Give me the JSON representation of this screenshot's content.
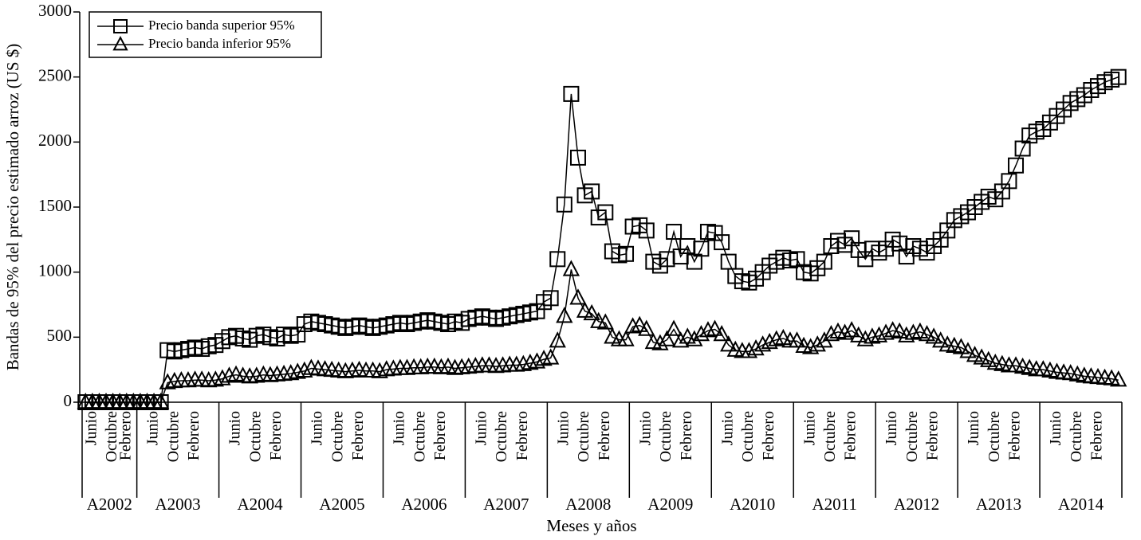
{
  "chart_data": {
    "type": "line",
    "x_label": "Meses y años",
    "y_label": "Bandas de 95% del precio estimado arroz (US $)",
    "ylim": [
      0,
      3000
    ],
    "yticks": [
      0,
      500,
      1000,
      1500,
      2000,
      2500,
      3000
    ],
    "legend": "top-left",
    "groups": [
      {
        "label": "A2002",
        "count": 8
      },
      {
        "label": "A2003",
        "count": 12
      },
      {
        "label": "A2004",
        "count": 12
      },
      {
        "label": "A2005",
        "count": 12
      },
      {
        "label": "A2006",
        "count": 12
      },
      {
        "label": "A2007",
        "count": 12
      },
      {
        "label": "A2008",
        "count": 12
      },
      {
        "label": "A2009",
        "count": 12
      },
      {
        "label": "A2010",
        "count": 12
      },
      {
        "label": "A2011",
        "count": 12
      },
      {
        "label": "A2012",
        "count": 12
      },
      {
        "label": "A2013",
        "count": 12
      },
      {
        "label": "A2014",
        "count": 12
      }
    ],
    "categories": [
      null,
      "Junio",
      null,
      null,
      "Octubre",
      null,
      "Febrero",
      null,
      null,
      null,
      "Junio",
      null,
      null,
      "Octubre",
      null,
      null,
      "Febrero",
      null,
      null,
      null,
      null,
      null,
      "Junio",
      null,
      null,
      "Octubre",
      null,
      null,
      "Febrero",
      null,
      null,
      null,
      null,
      null,
      "Junio",
      null,
      null,
      "Octubre",
      null,
      null,
      "Febrero",
      null,
      null,
      null,
      null,
      null,
      "Junio",
      null,
      null,
      "Octubre",
      null,
      null,
      "Febrero",
      null,
      null,
      null,
      null,
      null,
      "Junio",
      null,
      null,
      "Octubre",
      null,
      null,
      "Febrero",
      null,
      null,
      null,
      null,
      null,
      "Junio",
      null,
      null,
      "Octubre",
      null,
      null,
      "Febrero",
      null,
      null,
      null,
      null,
      null,
      "Junio",
      null,
      null,
      "Octubre",
      null,
      null,
      "Febrero",
      null,
      null,
      null,
      null,
      null,
      "Junio",
      null,
      null,
      "Octubre",
      null,
      null,
      "Febrero",
      null,
      null,
      null,
      null,
      null,
      "Junio",
      null,
      null,
      "Octubre",
      null,
      null,
      "Febrero",
      null,
      null,
      null,
      null,
      null,
      "Junio",
      null,
      null,
      "Octubre",
      null,
      null,
      "Febrero",
      null,
      null,
      null,
      null,
      null,
      "Junio",
      null,
      null,
      "Octubre",
      null,
      null,
      "Febrero",
      null,
      null,
      null,
      null,
      null,
      "Junio",
      null,
      null,
      "Octubre",
      null,
      null,
      "Febrero",
      null,
      null,
      null
    ],
    "series": [
      {
        "name": "Precio banda superior 95%",
        "color": "#000000",
        "marker": "square",
        "values": [
          0,
          0,
          0,
          0,
          0,
          0,
          0,
          0,
          0,
          0,
          0,
          0,
          400,
          390,
          400,
          410,
          420,
          410,
          430,
          440,
          470,
          500,
          510,
          490,
          480,
          510,
          520,
          500,
          490,
          520,
          510,
          520,
          600,
          620,
          610,
          600,
          590,
          580,
          570,
          580,
          590,
          580,
          570,
          580,
          590,
          600,
          610,
          600,
          610,
          620,
          630,
          620,
          610,
          600,
          620,
          610,
          640,
          650,
          660,
          650,
          640,
          650,
          660,
          670,
          680,
          690,
          700,
          770,
          800,
          1100,
          1520,
          2370,
          1880,
          1590,
          1620,
          1420,
          1460,
          1160,
          1130,
          1140,
          1350,
          1360,
          1320,
          1080,
          1050,
          1100,
          1310,
          1120,
          1200,
          1080,
          1180,
          1310,
          1300,
          1230,
          1080,
          970,
          930,
          920,
          950,
          1000,
          1050,
          1080,
          1110,
          1090,
          1100,
          1000,
          990,
          1030,
          1080,
          1200,
          1240,
          1210,
          1260,
          1170,
          1100,
          1180,
          1150,
          1180,
          1250,
          1220,
          1120,
          1200,
          1180,
          1150,
          1200,
          1250,
          1320,
          1400,
          1430,
          1460,
          1500,
          1540,
          1580,
          1560,
          1620,
          1700,
          1820,
          1950,
          2050,
          2080,
          2100,
          2150,
          2200,
          2250,
          2300,
          2330,
          2360,
          2400,
          2430,
          2460,
          2480,
          2500
        ]
      },
      {
        "name": "Precio banda inferior 95%",
        "color": "#000000",
        "marker": "triangle",
        "values": [
          0,
          0,
          0,
          0,
          0,
          0,
          0,
          0,
          0,
          0,
          0,
          0,
          150,
          160,
          165,
          165,
          170,
          170,
          165,
          170,
          180,
          200,
          210,
          200,
          195,
          200,
          210,
          205,
          210,
          215,
          220,
          230,
          240,
          260,
          255,
          250,
          245,
          240,
          235,
          240,
          245,
          240,
          240,
          235,
          250,
          255,
          260,
          260,
          265,
          265,
          270,
          270,
          265,
          270,
          260,
          265,
          270,
          275,
          280,
          280,
          275,
          280,
          285,
          285,
          290,
          300,
          310,
          330,
          340,
          470,
          660,
          1020,
          800,
          700,
          680,
          620,
          610,
          500,
          480,
          480,
          580,
          590,
          560,
          460,
          450,
          480,
          560,
          470,
          500,
          480,
          520,
          550,
          560,
          520,
          440,
          400,
          390,
          390,
          410,
          440,
          460,
          480,
          490,
          470,
          470,
          430,
          420,
          440,
          470,
          520,
          540,
          530,
          550,
          510,
          480,
          500,
          510,
          530,
          550,
          540,
          510,
          530,
          540,
          520,
          500,
          470,
          440,
          430,
          420,
          390,
          360,
          340,
          320,
          300,
          290,
          280,
          280,
          270,
          260,
          250,
          250,
          240,
          230,
          225,
          220,
          210,
          200,
          195,
          190,
          185,
          180,
          170
        ]
      }
    ]
  }
}
